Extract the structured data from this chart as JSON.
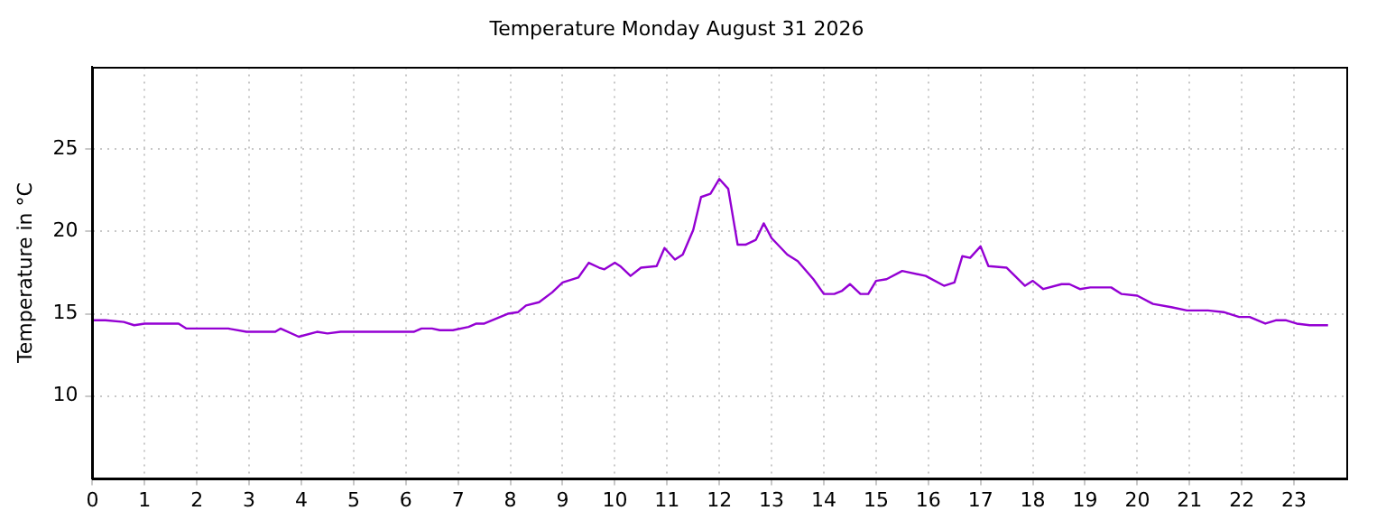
{
  "chart_data": {
    "type": "line",
    "title": "Temperature Monday August 31 2026",
    "ylabel": "Temperature in °C",
    "x": [
      0,
      0.25,
      0.6,
      0.8,
      1,
      1.65,
      1.8,
      2.6,
      2.95,
      3.5,
      3.6,
      3.95,
      4.3,
      4.5,
      4.75,
      6.15,
      6.3,
      6.5,
      6.65,
      6.9,
      7.2,
      7.35,
      7.5,
      7.95,
      8.15,
      8.3,
      8.55,
      8.8,
      9,
      9.3,
      9.5,
      9.7,
      9.8,
      10,
      10.1,
      10.3,
      10.5,
      10.8,
      10.95,
      11.15,
      11.3,
      11.5,
      11.65,
      11.83,
      12,
      12.17,
      12.35,
      12.5,
      12.7,
      12.85,
      13,
      13.3,
      13.5,
      13.8,
      14,
      14.2,
      14.35,
      14.5,
      14.7,
      14.85,
      15,
      15.2,
      15.5,
      15.95,
      16.3,
      16.5,
      16.65,
      16.8,
      17,
      17.15,
      17.5,
      17.85,
      18,
      18.2,
      18.55,
      18.7,
      18.9,
      19.1,
      19.5,
      19.7,
      20,
      20.3,
      20.65,
      20.95,
      21.35,
      21.65,
      21.95,
      22.15,
      22.45,
      22.65,
      22.85,
      23.05,
      23.3,
      23.65
    ],
    "series": [
      {
        "color": "#9400d3",
        "values": [
          14.6,
          14.6,
          14.5,
          14.3,
          14.4,
          14.4,
          14.1,
          14.1,
          13.9,
          13.9,
          14.1,
          13.6,
          13.9,
          13.8,
          13.9,
          13.9,
          14.1,
          14.1,
          14,
          14,
          14.2,
          14.4,
          14.4,
          15,
          15.1,
          15.5,
          15.7,
          16.3,
          16.9,
          17.2,
          18.1,
          17.8,
          17.7,
          18.1,
          17.9,
          17.3,
          17.8,
          17.9,
          19,
          18.3,
          18.6,
          20.1,
          22.1,
          22.3,
          23.2,
          22.6,
          19.2,
          19.2,
          19.5,
          20.5,
          19.6,
          18.6,
          18.2,
          17.1,
          16.2,
          16.2,
          16.4,
          16.8,
          16.2,
          16.2,
          17,
          17.1,
          17.6,
          17.3,
          16.7,
          16.9,
          18.5,
          18.4,
          19.1,
          17.9,
          17.8,
          16.7,
          17,
          16.5,
          16.8,
          16.8,
          16.5,
          16.6,
          16.6,
          16.2,
          16.1,
          15.6,
          15.4,
          15.2,
          15.2,
          15.1,
          14.8,
          14.8,
          14.4,
          14.6,
          14.6,
          14.4,
          14.3,
          14.3
        ]
      }
    ],
    "xlim": [
      0,
      24
    ],
    "xticks": [
      0,
      1,
      2,
      3,
      4,
      5,
      6,
      7,
      8,
      9,
      10,
      11,
      12,
      13,
      14,
      15,
      16,
      17,
      18,
      19,
      20,
      21,
      22,
      23
    ],
    "ylim": [
      5,
      30
    ],
    "yticks": [
      10,
      15,
      20,
      25
    ],
    "grid": true,
    "legend": false
  }
}
